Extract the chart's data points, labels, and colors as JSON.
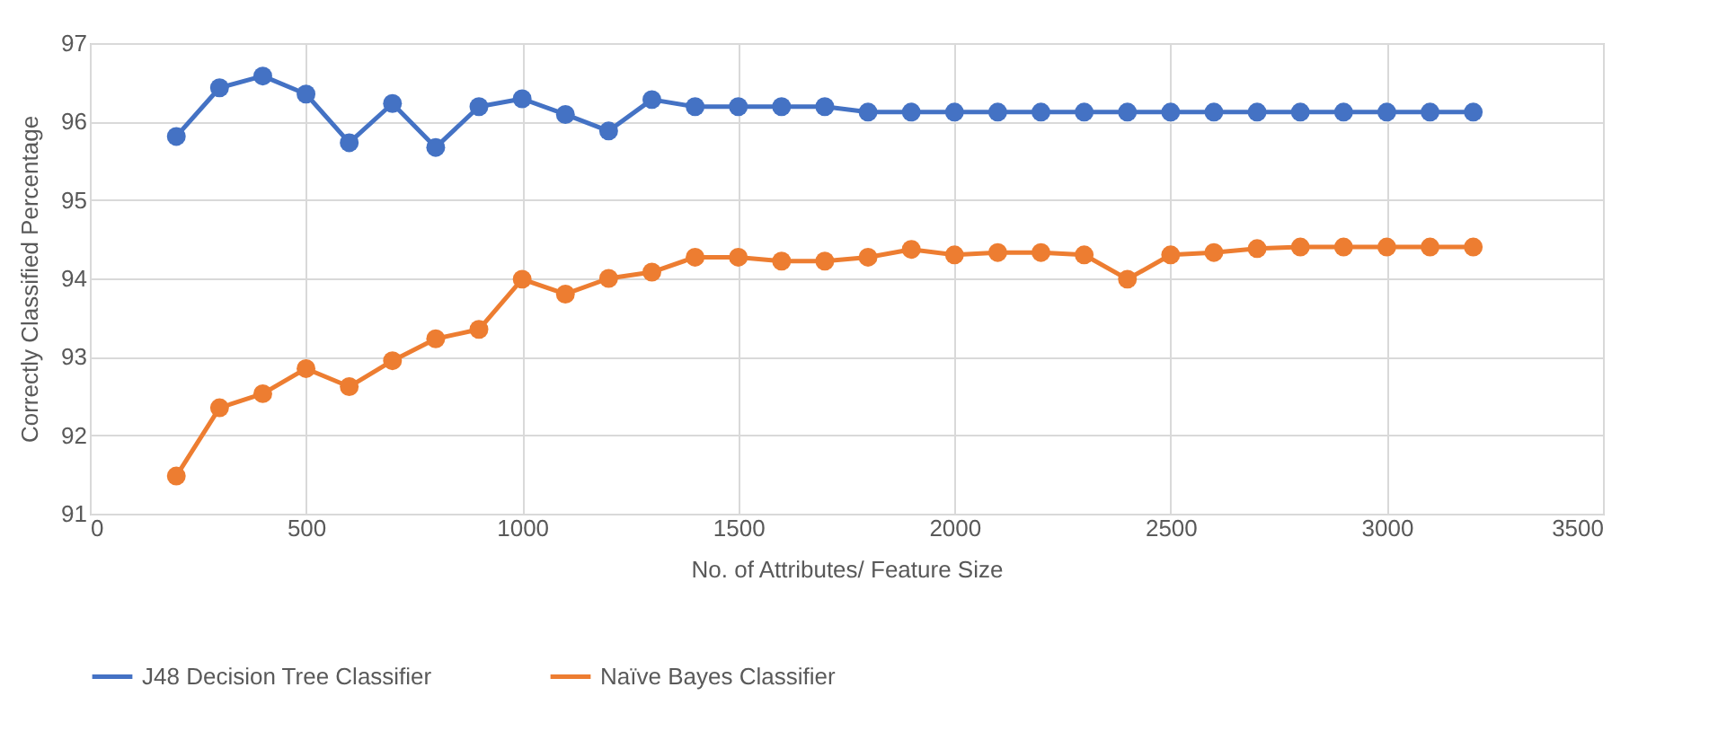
{
  "chart_data": {
    "type": "line",
    "xlabel": "No. of Attributes/ Feature Size",
    "ylabel": "Correctly Classified Percentage",
    "x": [
      200,
      300,
      400,
      500,
      600,
      700,
      800,
      900,
      1000,
      1100,
      1200,
      1300,
      1400,
      1500,
      1600,
      1700,
      1800,
      1900,
      2000,
      2100,
      2200,
      2300,
      2400,
      2500,
      2600,
      2700,
      2800,
      2900,
      3000,
      3100,
      3200
    ],
    "series": [
      {
        "name": "J48 Decision Tree Classifier",
        "color": "#4472c4",
        "values": [
          95.81,
          96.43,
          96.58,
          96.35,
          95.73,
          96.23,
          95.67,
          96.19,
          96.29,
          96.09,
          95.88,
          96.28,
          96.19,
          96.19,
          96.19,
          96.19,
          96.12,
          96.12,
          96.12,
          96.12,
          96.12,
          96.12,
          96.12,
          96.12,
          96.12,
          96.12,
          96.12,
          96.12,
          96.12,
          96.12,
          96.12
        ]
      },
      {
        "name": "Naïve Bayes Classifier",
        "color": "#ed7d31",
        "values": [
          91.48,
          92.35,
          92.53,
          92.85,
          92.62,
          92.95,
          93.23,
          93.35,
          93.99,
          93.8,
          94.0,
          94.08,
          94.27,
          94.27,
          94.22,
          94.22,
          94.27,
          94.37,
          94.3,
          94.33,
          94.33,
          94.3,
          93.99,
          94.3,
          94.33,
          94.38,
          94.4,
          94.4,
          94.4,
          94.4,
          94.4
        ]
      }
    ],
    "xlim": [
      0,
      3500
    ],
    "xticks": [
      0,
      500,
      1000,
      1500,
      2000,
      2500,
      3000,
      3500
    ],
    "ylim": [
      91,
      97
    ],
    "yticks": [
      91,
      92,
      93,
      94,
      95,
      96,
      97
    ],
    "grid": true,
    "legend": "bottom",
    "marker": "circle",
    "line_style": "solid"
  }
}
